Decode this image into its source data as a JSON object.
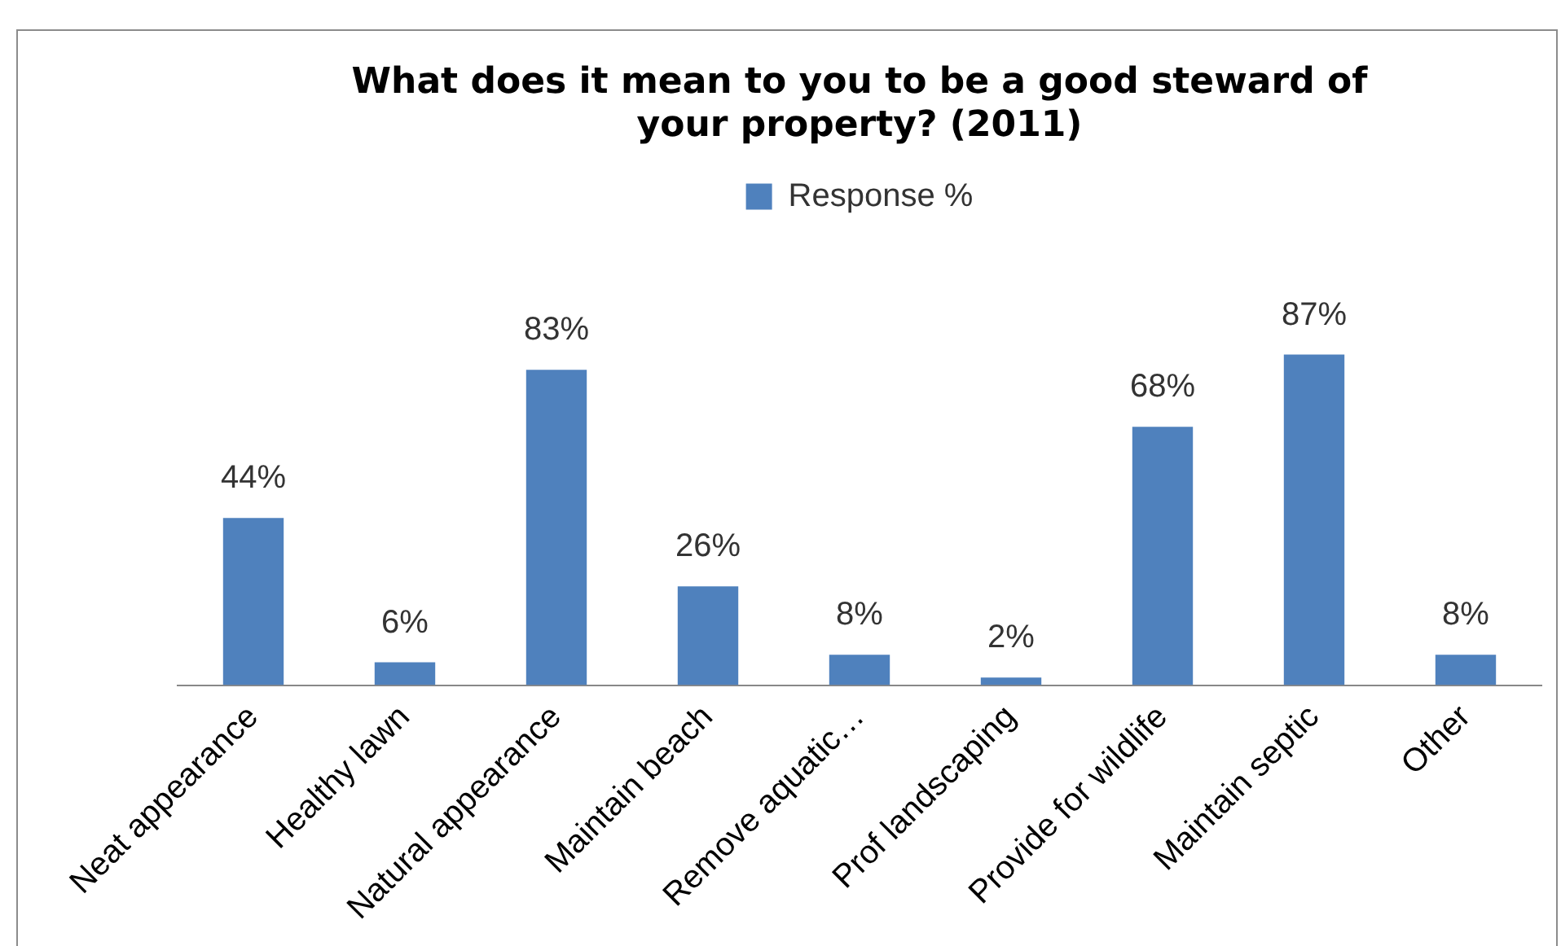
{
  "chart_data": {
    "type": "bar",
    "title": "What does it mean to you to be a good steward of your property? (2011)",
    "categories": [
      "Neat appearance",
      "Healthy lawn",
      "Natural appearance",
      "Maintain beach",
      "Remove aquatic…",
      "Prof landscaping",
      "Provide for wildlife",
      "Maintain septic",
      "Other"
    ],
    "series": [
      {
        "name": "Response %",
        "color": "#4f81bd",
        "values": [
          44,
          6,
          83,
          26,
          8,
          2,
          68,
          87,
          8
        ],
        "value_labels": [
          "44%",
          "6%",
          "83%",
          "26%",
          "8%",
          "2%",
          "68%",
          "87%",
          "8%"
        ]
      }
    ],
    "legend": "top",
    "tick_labels": "x",
    "grid": false
  }
}
